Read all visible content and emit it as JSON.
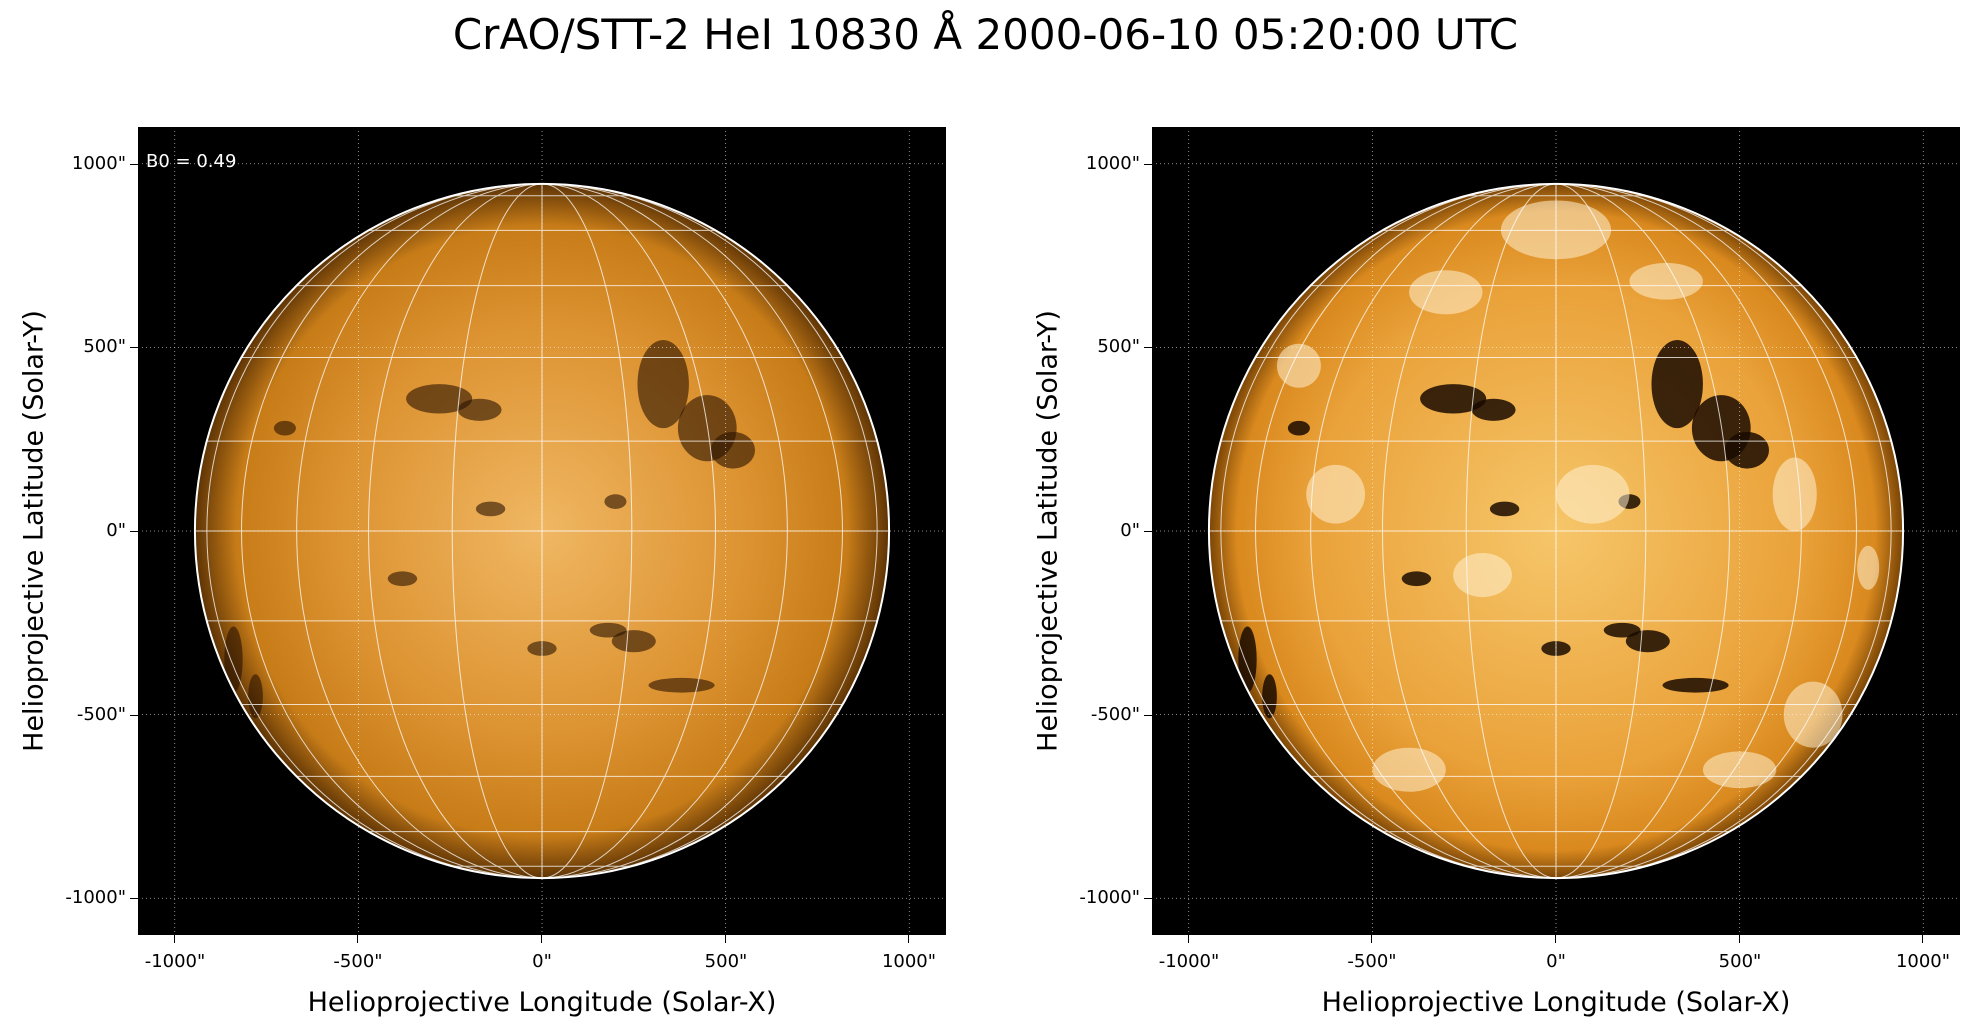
{
  "title": "CrAO/STT-2 HeI 10830 Å 2000-06-10 05:20:00 UTC",
  "panels": [
    {
      "annotation": "B0 = 0.49",
      "xlabel": "Helioprojective Longitude (Solar-X)",
      "ylabel": "Helioprojective Latitude (Solar-Y)",
      "xticks": [
        "-1000\"",
        "-500\"",
        "0\"",
        "500\"",
        "1000\""
      ],
      "yticks": [
        "1000\"",
        "500\"",
        "0\"",
        "-500\"",
        "-1000\""
      ]
    },
    {
      "annotation": "",
      "xlabel": "Helioprojective Longitude (Solar-X)",
      "ylabel": "Helioprojective Latitude (Solar-Y)",
      "xticks": [
        "-1000\"",
        "-500\"",
        "0\"",
        "500\"",
        "1000\""
      ],
      "yticks": [
        "1000\"",
        "500\"",
        "0\"",
        "-500\"",
        "-1000\""
      ]
    }
  ],
  "image": {
    "colormap": "orange-hot",
    "background_color": "#000000",
    "grid_color": "#ffffff",
    "axis_range_arcsec": [
      -1100,
      1100
    ],
    "tick_values_arcsec": [
      -1000,
      -500,
      0,
      500,
      1000
    ],
    "solar_radius_arcsec": 945
  }
}
